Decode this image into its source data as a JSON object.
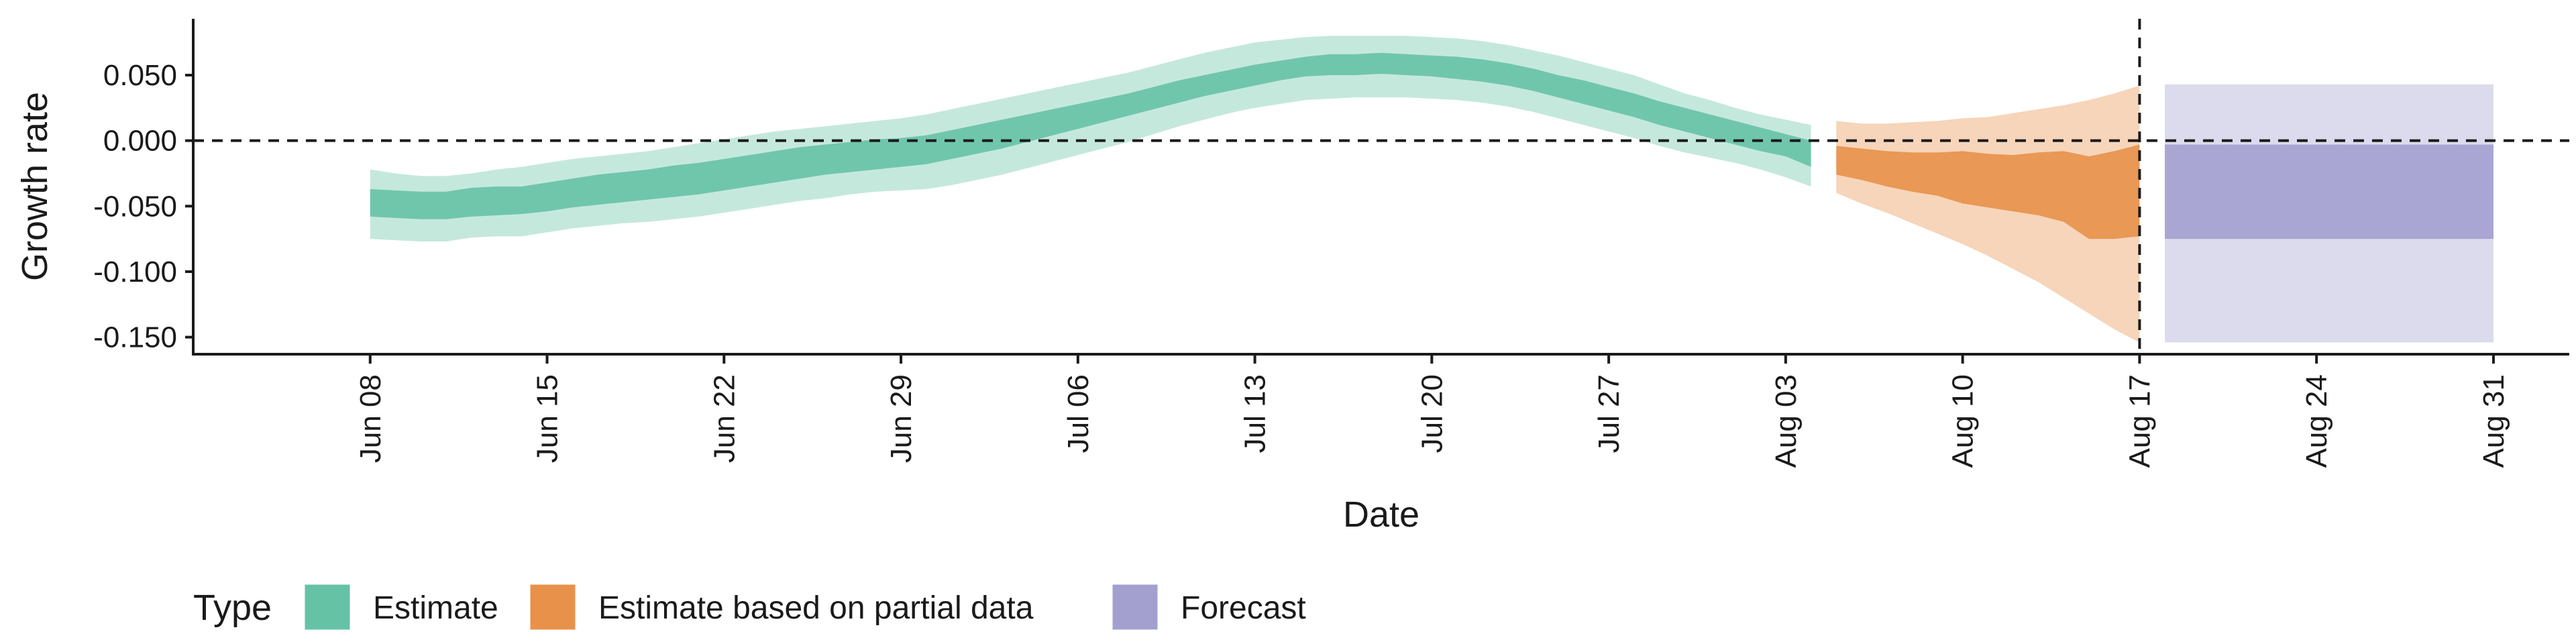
{
  "chart_data": {
    "type": "area",
    "xlabel": "Date",
    "ylabel": "Growth rate",
    "ylim": [
      -0.163,
      0.093
    ],
    "xlim": [
      "2020-06-01",
      "2020-09-03"
    ],
    "x_ticks": [
      "2020-06-08",
      "2020-06-15",
      "2020-06-22",
      "2020-06-29",
      "2020-07-06",
      "2020-07-13",
      "2020-07-20",
      "2020-07-27",
      "2020-08-03",
      "2020-08-10",
      "2020-08-17",
      "2020-08-24",
      "2020-08-31"
    ],
    "x_tick_labels": [
      "Jun 08",
      "Jun 15",
      "Jun 22",
      "Jun 29",
      "Jul 06",
      "Jul 13",
      "Jul 20",
      "Jul 27",
      "Aug 03",
      "Aug 10",
      "Aug 17",
      "Aug 24",
      "Aug 31"
    ],
    "y_ticks": [
      0.05,
      0.0,
      -0.05,
      -0.1,
      -0.15
    ],
    "y_tick_labels": [
      "0.050",
      "0.000",
      "-0.050",
      "-0.100",
      "-0.150"
    ],
    "reference_lines": {
      "horizontal_y": 0.0,
      "vertical_x": "2020-08-17"
    },
    "grid": false,
    "legend": {
      "title": "Type",
      "position": "bottom-left",
      "items": [
        {
          "label": "Estimate",
          "color": "#66c2a5"
        },
        {
          "label": "Estimate based on partial data",
          "color": "#e8914a"
        },
        {
          "label": "Forecast",
          "color": "#a3a0cf"
        }
      ]
    },
    "series": [
      {
        "name": "Estimate",
        "color": "#66c2a5",
        "dark_opacity": 0.9,
        "light_opacity": 0.38,
        "x": [
          "2020-06-08",
          "2020-06-09",
          "2020-06-10",
          "2020-06-11",
          "2020-06-12",
          "2020-06-13",
          "2020-06-14",
          "2020-06-15",
          "2020-06-16",
          "2020-06-17",
          "2020-06-18",
          "2020-06-19",
          "2020-06-20",
          "2020-06-21",
          "2020-06-22",
          "2020-06-23",
          "2020-06-24",
          "2020-06-25",
          "2020-06-26",
          "2020-06-27",
          "2020-06-28",
          "2020-06-29",
          "2020-06-30",
          "2020-07-01",
          "2020-07-02",
          "2020-07-03",
          "2020-07-04",
          "2020-07-05",
          "2020-07-06",
          "2020-07-07",
          "2020-07-08",
          "2020-07-09",
          "2020-07-10",
          "2020-07-11",
          "2020-07-12",
          "2020-07-13",
          "2020-07-14",
          "2020-07-15",
          "2020-07-16",
          "2020-07-17",
          "2020-07-18",
          "2020-07-19",
          "2020-07-20",
          "2020-07-21",
          "2020-07-22",
          "2020-07-23",
          "2020-07-24",
          "2020-07-25",
          "2020-07-26",
          "2020-07-27",
          "2020-07-28",
          "2020-07-29",
          "2020-07-30",
          "2020-07-31",
          "2020-08-01",
          "2020-08-02",
          "2020-08-03",
          "2020-08-04"
        ],
        "lower90": [
          -0.075,
          -0.076,
          -0.077,
          -0.077,
          -0.074,
          -0.073,
          -0.073,
          -0.07,
          -0.067,
          -0.065,
          -0.063,
          -0.062,
          -0.06,
          -0.058,
          -0.055,
          -0.052,
          -0.049,
          -0.046,
          -0.044,
          -0.041,
          -0.039,
          -0.038,
          -0.037,
          -0.034,
          -0.03,
          -0.026,
          -0.021,
          -0.016,
          -0.011,
          -0.006,
          -0.001,
          0.005,
          0.011,
          0.016,
          0.021,
          0.025,
          0.028,
          0.031,
          0.032,
          0.033,
          0.033,
          0.033,
          0.032,
          0.031,
          0.029,
          0.026,
          0.022,
          0.017,
          0.012,
          0.007,
          0.002,
          -0.004,
          -0.009,
          -0.013,
          -0.017,
          -0.022,
          -0.028,
          -0.035
        ],
        "lower50": [
          -0.058,
          -0.059,
          -0.06,
          -0.06,
          -0.058,
          -0.057,
          -0.056,
          -0.054,
          -0.051,
          -0.049,
          -0.047,
          -0.045,
          -0.043,
          -0.041,
          -0.038,
          -0.035,
          -0.032,
          -0.029,
          -0.026,
          -0.024,
          -0.022,
          -0.02,
          -0.018,
          -0.014,
          -0.01,
          -0.006,
          -0.001,
          0.004,
          0.009,
          0.014,
          0.019,
          0.024,
          0.029,
          0.034,
          0.038,
          0.042,
          0.046,
          0.049,
          0.05,
          0.05,
          0.051,
          0.05,
          0.049,
          0.047,
          0.045,
          0.042,
          0.038,
          0.033,
          0.028,
          0.023,
          0.018,
          0.012,
          0.007,
          0.002,
          -0.003,
          -0.008,
          -0.012,
          -0.02
        ],
        "upper50": [
          -0.037,
          -0.038,
          -0.039,
          -0.039,
          -0.036,
          -0.035,
          -0.035,
          -0.032,
          -0.029,
          -0.026,
          -0.024,
          -0.022,
          -0.019,
          -0.017,
          -0.014,
          -0.011,
          -0.008,
          -0.005,
          -0.003,
          -0.001,
          0.001,
          0.002,
          0.004,
          0.008,
          0.012,
          0.016,
          0.02,
          0.024,
          0.028,
          0.032,
          0.036,
          0.041,
          0.046,
          0.05,
          0.054,
          0.058,
          0.061,
          0.064,
          0.066,
          0.066,
          0.067,
          0.066,
          0.065,
          0.064,
          0.062,
          0.059,
          0.055,
          0.05,
          0.046,
          0.041,
          0.036,
          0.03,
          0.025,
          0.02,
          0.015,
          0.01,
          0.005,
          0.0
        ],
        "upper90": [
          -0.022,
          -0.025,
          -0.027,
          -0.027,
          -0.025,
          -0.022,
          -0.02,
          -0.017,
          -0.014,
          -0.012,
          -0.01,
          -0.008,
          -0.005,
          -0.002,
          0.001,
          0.004,
          0.007,
          0.009,
          0.011,
          0.013,
          0.015,
          0.017,
          0.02,
          0.024,
          0.028,
          0.032,
          0.036,
          0.04,
          0.044,
          0.048,
          0.052,
          0.057,
          0.062,
          0.067,
          0.071,
          0.075,
          0.077,
          0.079,
          0.08,
          0.08,
          0.08,
          0.08,
          0.079,
          0.078,
          0.076,
          0.073,
          0.069,
          0.065,
          0.06,
          0.055,
          0.05,
          0.043,
          0.036,
          0.031,
          0.025,
          0.02,
          0.016,
          0.012
        ]
      },
      {
        "name": "Estimate based on partial data",
        "color": "#e8914a",
        "dark_opacity": 0.9,
        "light_opacity": 0.38,
        "x": [
          "2020-08-05",
          "2020-08-06",
          "2020-08-07",
          "2020-08-08",
          "2020-08-09",
          "2020-08-10",
          "2020-08-11",
          "2020-08-12",
          "2020-08-13",
          "2020-08-14",
          "2020-08-15",
          "2020-08-16",
          "2020-08-17"
        ],
        "lower90": [
          -0.04,
          -0.048,
          -0.055,
          -0.063,
          -0.071,
          -0.079,
          -0.088,
          -0.098,
          -0.108,
          -0.12,
          -0.132,
          -0.144,
          -0.154
        ],
        "lower50": [
          -0.026,
          -0.03,
          -0.035,
          -0.039,
          -0.042,
          -0.048,
          -0.051,
          -0.054,
          -0.057,
          -0.062,
          -0.075,
          -0.075,
          -0.073
        ],
        "upper50": [
          -0.004,
          -0.006,
          -0.008,
          -0.009,
          -0.009,
          -0.008,
          -0.01,
          -0.011,
          -0.009,
          -0.008,
          -0.012,
          -0.008,
          -0.003
        ],
        "upper90": [
          0.015,
          0.013,
          0.013,
          0.014,
          0.015,
          0.017,
          0.018,
          0.021,
          0.024,
          0.027,
          0.031,
          0.036,
          0.042
        ]
      },
      {
        "name": "Forecast",
        "color": "#a3a0cf",
        "dark_opacity": 0.9,
        "light_opacity": 0.38,
        "x": [
          "2020-08-18",
          "2020-08-31"
        ],
        "lower90": [
          -0.154,
          -0.154
        ],
        "lower50": [
          -0.075,
          -0.075
        ],
        "upper50": [
          -0.003,
          -0.003
        ],
        "upper90": [
          0.043,
          0.043
        ]
      }
    ]
  }
}
